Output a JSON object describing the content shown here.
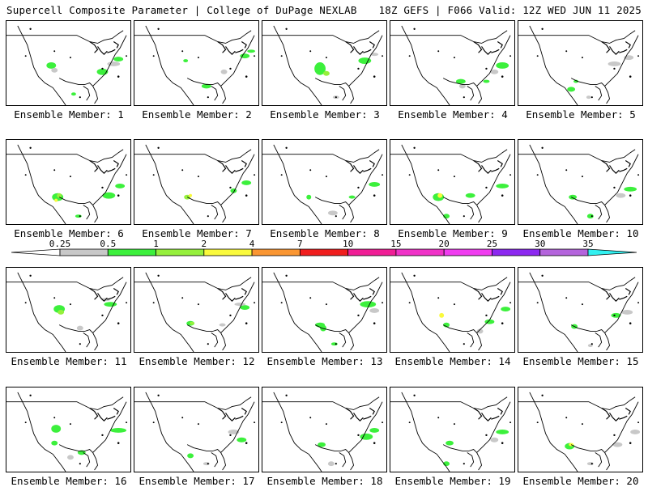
{
  "header": {
    "title_left": "Supercell Composite Parameter | College of DuPage NEXLAB",
    "title_right": "18Z GEFS | F066 Valid: 12Z WED JUN 11 2025"
  },
  "panels": [
    {
      "label": "Ensemble Member: 1"
    },
    {
      "label": "Ensemble Member: 2"
    },
    {
      "label": "Ensemble Member: 3"
    },
    {
      "label": "Ensemble Member: 4"
    },
    {
      "label": "Ensemble Member: 5"
    },
    {
      "label": "Ensemble Member: 6"
    },
    {
      "label": "Ensemble Member: 7"
    },
    {
      "label": "Ensemble Member: 8"
    },
    {
      "label": "Ensemble Member: 9"
    },
    {
      "label": "Ensemble Member: 10"
    },
    {
      "label": "Ensemble Member: 11"
    },
    {
      "label": "Ensemble Member: 12"
    },
    {
      "label": "Ensemble Member: 13"
    },
    {
      "label": "Ensemble Member: 14"
    },
    {
      "label": "Ensemble Member: 15"
    },
    {
      "label": "Ensemble Member: 16"
    },
    {
      "label": "Ensemble Member: 17"
    },
    {
      "label": "Ensemble Member: 18"
    },
    {
      "label": "Ensemble Member: 19"
    },
    {
      "label": "Ensemble Member: 20"
    }
  ],
  "colorbar": {
    "labels": [
      "0.25",
      "0.5",
      "1",
      "2",
      "4",
      "7",
      "10",
      "15",
      "20",
      "25",
      "30",
      "35"
    ],
    "colors": [
      "#c8c8c8",
      "#3cf03c",
      "#96f03c",
      "#fafa3c",
      "#fa9632",
      "#f01e1e",
      "#f01e96",
      "#f032c8",
      "#f03cf0",
      "#8c28f0",
      "#b464dc",
      "#32f0f0"
    ]
  }
}
